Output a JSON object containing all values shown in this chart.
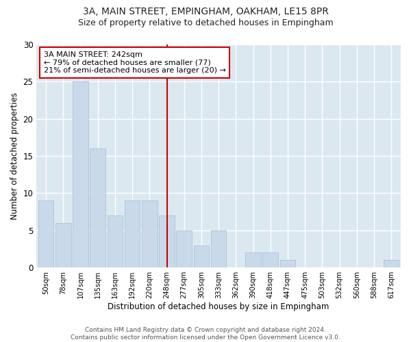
{
  "title1": "3A, MAIN STREET, EMPINGHAM, OAKHAM, LE15 8PR",
  "title2": "Size of property relative to detached houses in Empingham",
  "xlabel": "Distribution of detached houses by size in Empingham",
  "ylabel": "Number of detached properties",
  "bar_labels": [
    "50sqm",
    "78sqm",
    "107sqm",
    "135sqm",
    "163sqm",
    "192sqm",
    "220sqm",
    "248sqm",
    "277sqm",
    "305sqm",
    "333sqm",
    "362sqm",
    "390sqm",
    "418sqm",
    "447sqm",
    "475sqm",
    "503sqm",
    "532sqm",
    "560sqm",
    "588sqm",
    "617sqm"
  ],
  "bar_values": [
    9,
    6,
    25,
    16,
    7,
    9,
    9,
    7,
    5,
    3,
    5,
    0,
    2,
    2,
    1,
    0,
    0,
    0,
    0,
    0,
    1
  ],
  "bar_color": "#c9d9ea",
  "bar_edge_color": "#a8c4d8",
  "vline_x": 7,
  "vline_color": "#cc0000",
  "annotation_text": "3A MAIN STREET: 242sqm\n← 79% of detached houses are smaller (77)\n21% of semi-detached houses are larger (20) →",
  "annotation_box_color": "#ffffff",
  "annotation_box_edge": "#cc0000",
  "ylim": [
    0,
    30
  ],
  "yticks": [
    0,
    5,
    10,
    15,
    20,
    25,
    30
  ],
  "footer": "Contains HM Land Registry data © Crown copyright and database right 2024.\nContains public sector information licensed under the Open Government Licence v3.0.",
  "fig_bg_color": "#ffffff",
  "plot_bg_color": "#dce8f0"
}
